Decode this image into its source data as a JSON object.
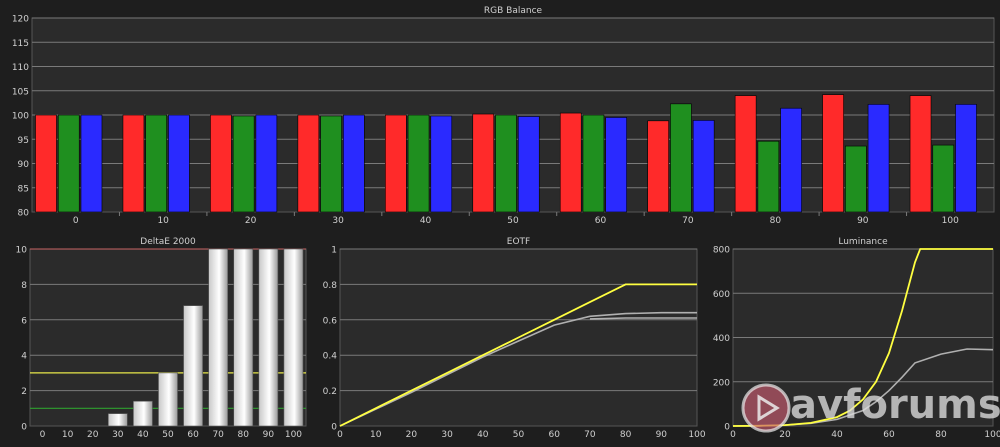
{
  "watermark": {
    "text": "avforums"
  },
  "colors": {
    "red": "#ff2a2a",
    "green": "#1f8f1f",
    "blue": "#2a2aff",
    "yellow": "#ffff40",
    "target": "#b0b0b0",
    "bg": "#1e1e1e",
    "plot": "#2b2b2b",
    "grid": "#7a7a7a",
    "text": "#d0d0d0"
  },
  "chart_data": [
    {
      "id": "rgb",
      "type": "bar",
      "title": "RGB Balance",
      "categories": [
        "0",
        "10",
        "20",
        "30",
        "40",
        "50",
        "60",
        "70",
        "80",
        "90",
        "100"
      ],
      "series": [
        {
          "color": "red",
          "values": [
            100,
            100,
            100,
            100,
            100,
            100.2,
            100.4,
            98.8,
            104,
            104.2,
            104
          ]
        },
        {
          "color": "green",
          "values": [
            100,
            100,
            99.8,
            99.8,
            100,
            100,
            100,
            102.3,
            94.6,
            93.6,
            93.8
          ]
        },
        {
          "color": "blue",
          "values": [
            100,
            100,
            100,
            100,
            99.8,
            99.7,
            99.5,
            98.9,
            101.4,
            102.2,
            102.2
          ]
        }
      ],
      "ylim": [
        80,
        120
      ],
      "yticks": [
        80,
        85,
        90,
        95,
        100,
        105,
        110,
        115,
        120
      ],
      "grid": true
    },
    {
      "id": "deltae",
      "type": "bar",
      "title": "DeltaE 2000",
      "categories": [
        "0",
        "10",
        "20",
        "30",
        "40",
        "50",
        "60",
        "70",
        "80",
        "90",
        "100"
      ],
      "values": [
        0,
        0,
        0,
        0.7,
        1.4,
        3.0,
        6.8,
        10,
        10,
        10,
        10
      ],
      "ylim": [
        0,
        10
      ],
      "yticks": [
        0,
        2,
        4,
        6,
        8,
        10
      ],
      "thresholds": [
        {
          "value": 3,
          "color": "#e8e84a"
        },
        {
          "value": 1,
          "color": "#2fa02f"
        }
      ],
      "grid": true
    },
    {
      "id": "eotf",
      "type": "line",
      "title": "EOTF",
      "xlim": [
        0,
        100
      ],
      "ylim": [
        0,
        1
      ],
      "xticks": [
        0,
        10,
        20,
        30,
        40,
        50,
        60,
        70,
        80,
        90,
        100
      ],
      "yticks": [
        0,
        0.2,
        0.4,
        0.6,
        0.8,
        1
      ],
      "series": [
        {
          "color": "yellow",
          "x": [
            0,
            10,
            20,
            30,
            40,
            50,
            60,
            70,
            79,
            80,
            90,
            100
          ],
          "y": [
            0,
            0.1,
            0.2,
            0.3,
            0.4,
            0.5,
            0.6,
            0.7,
            0.79,
            0.8,
            0.8,
            0.8
          ]
        },
        {
          "color": "target",
          "x": [
            0,
            10,
            20,
            30,
            40,
            50,
            60,
            70,
            80,
            90,
            100
          ],
          "y": [
            0,
            0.095,
            0.19,
            0.29,
            0.39,
            0.48,
            0.57,
            0.62,
            0.635,
            0.64,
            0.64
          ]
        },
        {
          "color": "target",
          "x": [
            70,
            80,
            90,
            100
          ],
          "y": [
            0.605,
            0.61,
            0.61,
            0.61
          ]
        }
      ],
      "grid": true
    },
    {
      "id": "luminance",
      "type": "line",
      "title": "Luminance",
      "xlim": [
        0,
        100
      ],
      "ylim": [
        0,
        800
      ],
      "xticks": [
        0,
        20,
        40,
        60,
        80,
        100
      ],
      "yticks": [
        0,
        200,
        400,
        600,
        800
      ],
      "series": [
        {
          "color": "yellow",
          "x": [
            0,
            10,
            20,
            30,
            40,
            45,
            50,
            55,
            60,
            65,
            70,
            72,
            75,
            80,
            90,
            100
          ],
          "y": [
            0,
            1,
            4,
            14,
            40,
            70,
            120,
            200,
            330,
            520,
            740,
            800,
            800,
            800,
            800,
            800
          ]
        },
        {
          "color": "target",
          "x": [
            0,
            10,
            20,
            30,
            40,
            50,
            55,
            60,
            65,
            70,
            80,
            90,
            100
          ],
          "y": [
            0,
            1,
            4,
            12,
            30,
            70,
            110,
            160,
            220,
            285,
            325,
            348,
            345
          ]
        }
      ],
      "grid": true
    }
  ]
}
